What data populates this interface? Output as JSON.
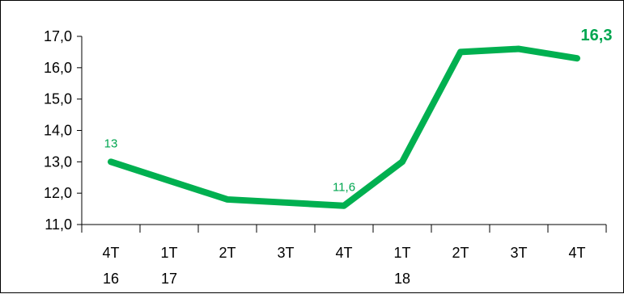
{
  "chart_data": {
    "type": "line",
    "categories": [
      [
        "4T",
        "16"
      ],
      [
        "1T",
        "17"
      ],
      [
        "2T",
        ""
      ],
      [
        "3T",
        ""
      ],
      [
        "4T",
        ""
      ],
      [
        "1T",
        "18"
      ],
      [
        "2T",
        ""
      ],
      [
        "3T",
        ""
      ],
      [
        "4T",
        ""
      ]
    ],
    "series": [
      {
        "values": [
          13.0,
          12.4,
          11.8,
          11.7,
          11.6,
          13.0,
          16.5,
          16.6,
          16.3
        ],
        "color": "#00b050"
      }
    ],
    "data_labels": [
      {
        "index": 0,
        "text": "13",
        "bold": false
      },
      {
        "index": 4,
        "text": "11,6",
        "bold": false
      },
      {
        "index": 8,
        "text": "16,3",
        "bold": true
      }
    ],
    "y_ticks": [
      "11,0",
      "12,0",
      "13,0",
      "14,0",
      "15,0",
      "16,0",
      "17,0"
    ],
    "ylim": [
      11,
      17
    ],
    "grid": false,
    "legend": "none",
    "title": "",
    "xlabel": "",
    "ylabel": ""
  }
}
